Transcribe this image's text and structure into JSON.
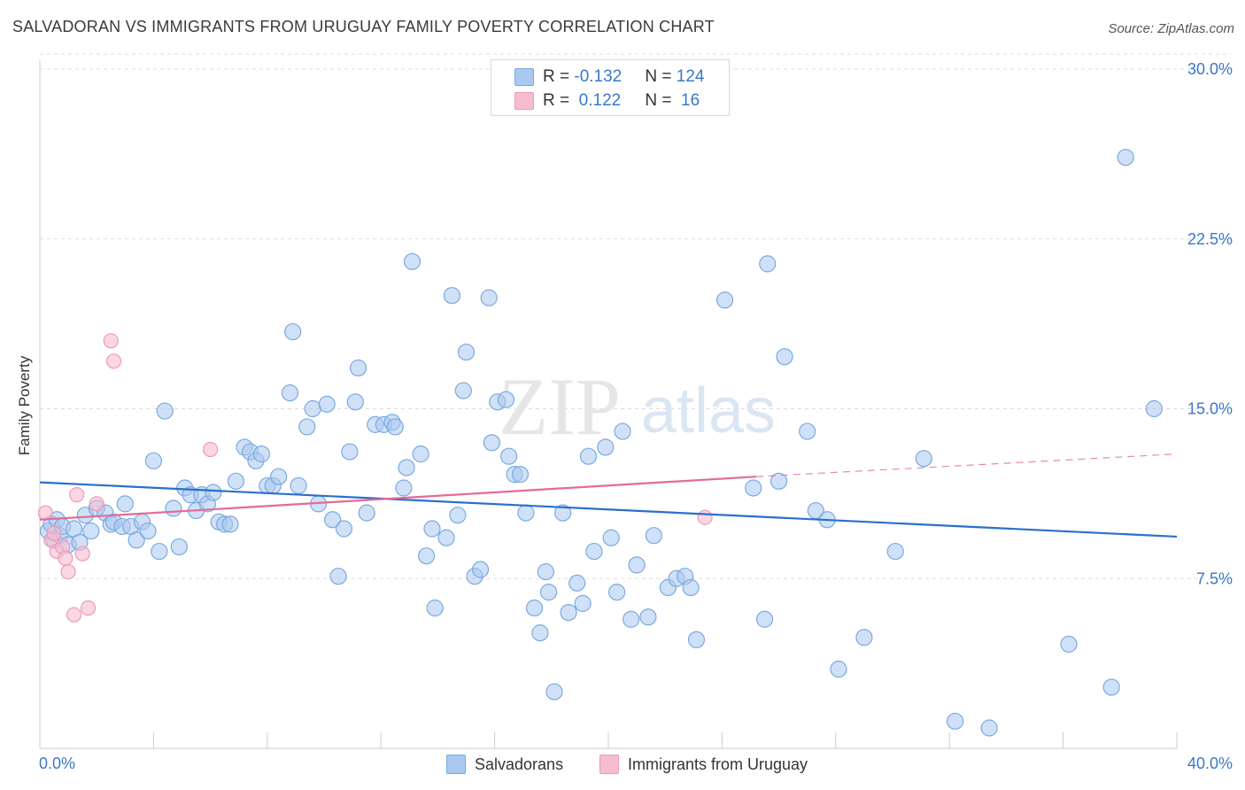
{
  "title": "SALVADORAN VS IMMIGRANTS FROM URUGUAY FAMILY POVERTY CORRELATION CHART",
  "source": "Source: ZipAtlas.com",
  "watermark": {
    "zip": "ZIP",
    "atlas": "atlas"
  },
  "stats": {
    "row1": {
      "r_label": "R = ",
      "r_value": "-0.132",
      "n_label": "N = ",
      "n_value": "124"
    },
    "row2": {
      "r_label": "R = ",
      "r_value": " 0.122",
      "n_label": "N = ",
      "n_value": " 16"
    }
  },
  "legend": {
    "series1": "Salvadorans",
    "series2": "Immigrants from Uruguay"
  },
  "colors": {
    "blue_fill": "#a9c9f0",
    "blue_stroke": "#7aaae0",
    "blue_line": "#2b6fcb",
    "pink_fill": "#f6bcd0",
    "pink_stroke": "#ee9ab6",
    "pink_line": "#e46a9a",
    "axis_text": "#3a78c9",
    "grid": "#dddddd"
  },
  "chart_data": {
    "type": "scatter",
    "title": "SALVADORAN VS IMMIGRANTS FROM URUGUAY FAMILY POVERTY CORRELATION CHART",
    "xlabel": "",
    "ylabel": "Family Poverty",
    "xlim": [
      0,
      40
    ],
    "ylim": [
      0,
      30
    ],
    "x_tick_labels": [
      "0.0%",
      "40.0%"
    ],
    "y_ticks": [
      7.5,
      15.0,
      22.5,
      30.0
    ],
    "y_tick_labels": [
      "7.5%",
      "15.0%",
      "22.5%",
      "30.0%"
    ],
    "grid": true,
    "series": [
      {
        "name": "Salvadorans",
        "r": -0.132,
        "n": 124,
        "trend": {
          "x": [
            0,
            40
          ],
          "y": [
            11.75,
            9.35
          ]
        },
        "points": [
          [
            0.3,
            9.6
          ],
          [
            0.4,
            9.9
          ],
          [
            0.5,
            9.2
          ],
          [
            0.6,
            10.1
          ],
          [
            0.7,
            9.4
          ],
          [
            0.8,
            9.8
          ],
          [
            1.0,
            9.0
          ],
          [
            1.2,
            9.7
          ],
          [
            1.4,
            9.1
          ],
          [
            1.6,
            10.3
          ],
          [
            1.8,
            9.6
          ],
          [
            2.0,
            10.6
          ],
          [
            2.3,
            10.4
          ],
          [
            2.5,
            9.9
          ],
          [
            2.6,
            10.0
          ],
          [
            2.9,
            9.8
          ],
          [
            3.0,
            10.8
          ],
          [
            3.2,
            9.8
          ],
          [
            3.4,
            9.2
          ],
          [
            3.6,
            10.0
          ],
          [
            3.8,
            9.6
          ],
          [
            4.0,
            12.7
          ],
          [
            4.2,
            8.7
          ],
          [
            4.4,
            14.9
          ],
          [
            4.7,
            10.6
          ],
          [
            4.9,
            8.9
          ],
          [
            5.1,
            11.5
          ],
          [
            5.3,
            11.2
          ],
          [
            5.5,
            10.5
          ],
          [
            5.7,
            11.2
          ],
          [
            5.9,
            10.8
          ],
          [
            6.1,
            11.3
          ],
          [
            6.3,
            10.0
          ],
          [
            6.5,
            9.9
          ],
          [
            6.7,
            9.9
          ],
          [
            6.9,
            11.8
          ],
          [
            7.2,
            13.3
          ],
          [
            7.4,
            13.1
          ],
          [
            7.6,
            12.7
          ],
          [
            7.8,
            13.0
          ],
          [
            8.0,
            11.6
          ],
          [
            8.2,
            11.6
          ],
          [
            8.4,
            12.0
          ],
          [
            8.8,
            15.7
          ],
          [
            8.9,
            18.4
          ],
          [
            9.1,
            11.6
          ],
          [
            9.4,
            14.2
          ],
          [
            9.6,
            15.0
          ],
          [
            9.8,
            10.8
          ],
          [
            10.1,
            15.2
          ],
          [
            10.3,
            10.1
          ],
          [
            10.5,
            7.6
          ],
          [
            10.7,
            9.7
          ],
          [
            10.9,
            13.1
          ],
          [
            11.1,
            15.3
          ],
          [
            11.2,
            16.8
          ],
          [
            11.5,
            10.4
          ],
          [
            11.8,
            14.3
          ],
          [
            12.1,
            14.3
          ],
          [
            12.4,
            14.4
          ],
          [
            12.5,
            14.2
          ],
          [
            12.8,
            11.5
          ],
          [
            12.9,
            12.4
          ],
          [
            13.1,
            21.5
          ],
          [
            13.4,
            13.0
          ],
          [
            13.6,
            8.5
          ],
          [
            13.8,
            9.7
          ],
          [
            13.9,
            6.2
          ],
          [
            14.3,
            9.3
          ],
          [
            14.5,
            20.0
          ],
          [
            14.7,
            10.3
          ],
          [
            14.9,
            15.8
          ],
          [
            15.0,
            17.5
          ],
          [
            15.3,
            7.6
          ],
          [
            15.5,
            7.9
          ],
          [
            15.8,
            19.9
          ],
          [
            15.9,
            13.5
          ],
          [
            16.1,
            15.3
          ],
          [
            16.4,
            15.4
          ],
          [
            16.5,
            12.9
          ],
          [
            16.7,
            12.1
          ],
          [
            16.9,
            12.1
          ],
          [
            17.1,
            10.4
          ],
          [
            17.4,
            6.2
          ],
          [
            17.6,
            5.1
          ],
          [
            17.8,
            7.8
          ],
          [
            17.9,
            6.9
          ],
          [
            18.1,
            2.5
          ],
          [
            18.4,
            10.4
          ],
          [
            18.6,
            6.0
          ],
          [
            18.9,
            7.3
          ],
          [
            19.1,
            6.4
          ],
          [
            19.3,
            12.9
          ],
          [
            19.5,
            8.7
          ],
          [
            19.9,
            13.3
          ],
          [
            20.1,
            9.3
          ],
          [
            20.3,
            6.9
          ],
          [
            20.5,
            14.0
          ],
          [
            20.8,
            5.7
          ],
          [
            21.0,
            8.1
          ],
          [
            21.4,
            5.8
          ],
          [
            21.6,
            9.4
          ],
          [
            22.1,
            7.1
          ],
          [
            22.4,
            7.5
          ],
          [
            22.7,
            7.6
          ],
          [
            22.9,
            7.1
          ],
          [
            23.1,
            4.8
          ],
          [
            24.1,
            19.8
          ],
          [
            25.1,
            11.5
          ],
          [
            25.5,
            5.7
          ],
          [
            25.6,
            21.4
          ],
          [
            26.0,
            11.8
          ],
          [
            26.2,
            17.3
          ],
          [
            27.0,
            14.0
          ],
          [
            27.3,
            10.5
          ],
          [
            27.7,
            10.1
          ],
          [
            28.1,
            3.5
          ],
          [
            29.0,
            4.9
          ],
          [
            30.1,
            8.7
          ],
          [
            31.1,
            12.8
          ],
          [
            32.2,
            1.2
          ],
          [
            33.4,
            0.9
          ],
          [
            36.2,
            4.6
          ],
          [
            37.7,
            2.7
          ],
          [
            38.2,
            26.1
          ],
          [
            39.2,
            15.0
          ]
        ]
      },
      {
        "name": "Immigrants from Uruguay",
        "r": 0.122,
        "n": 16,
        "trend": {
          "x": [
            0,
            25.2
          ],
          "y": [
            10.1,
            12.0
          ],
          "dashed_to": {
            "x": 40,
            "y": 13.0
          }
        },
        "points": [
          [
            0.2,
            10.4
          ],
          [
            0.4,
            9.2
          ],
          [
            0.5,
            9.5
          ],
          [
            0.6,
            8.7
          ],
          [
            0.8,
            8.9
          ],
          [
            0.9,
            8.4
          ],
          [
            1.0,
            7.8
          ],
          [
            1.2,
            5.9
          ],
          [
            1.3,
            11.2
          ],
          [
            1.5,
            8.6
          ],
          [
            1.7,
            6.2
          ],
          [
            2.0,
            10.8
          ],
          [
            2.5,
            18.0
          ],
          [
            2.6,
            17.1
          ],
          [
            6.0,
            13.2
          ],
          [
            23.4,
            10.2
          ]
        ]
      }
    ]
  }
}
